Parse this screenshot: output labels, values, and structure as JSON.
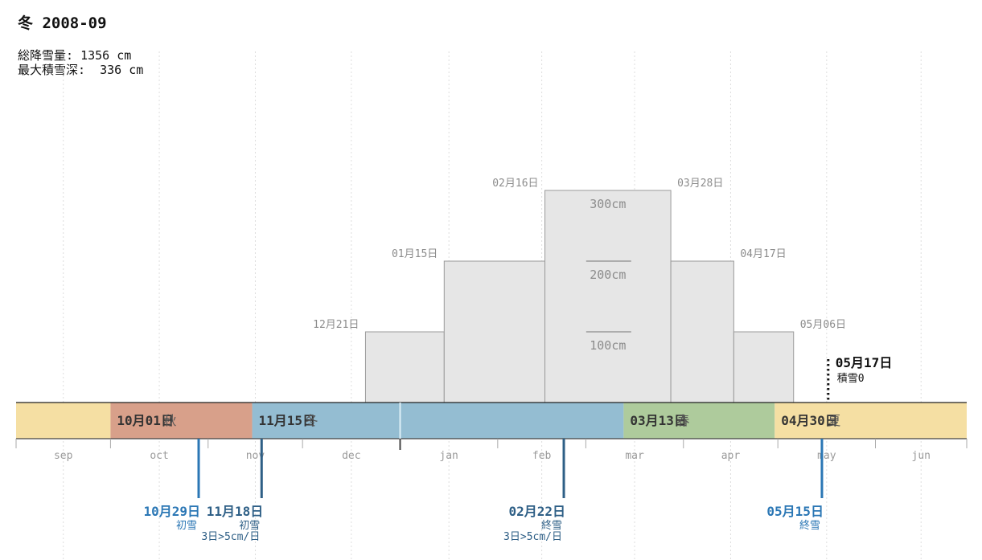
{
  "header": {
    "title": "冬 2008-09",
    "total_label": "総降雪量",
    "total_sep": ":",
    "total_value": "1356 cm",
    "max_label": "最大積雪深:",
    "max_value": "336 cm"
  },
  "chart_data": {
    "type": "step",
    "title": "冬 2008-09",
    "x_axis": {
      "type": "date",
      "range": [
        "2008-09-01",
        "2009-06-30"
      ],
      "tick_labels": [
        {
          "label": "sep",
          "date": "2008-09-01"
        },
        {
          "label": "oct",
          "date": "2008-10-01"
        },
        {
          "label": "nov",
          "date": "2008-11-01"
        },
        {
          "label": "dec",
          "date": "2008-12-01"
        },
        {
          "label": "jan",
          "date": "2009-01-01"
        },
        {
          "label": "feb",
          "date": "2009-02-01"
        },
        {
          "label": "mar",
          "date": "2009-03-01"
        },
        {
          "label": "apr",
          "date": "2009-04-01"
        },
        {
          "label": "may",
          "date": "2009-05-01"
        },
        {
          "label": "jun",
          "date": "2009-06-01"
        }
      ]
    },
    "y_axis": {
      "unit": "cm",
      "range": [
        0,
        300
      ],
      "reference_lines": [
        {
          "value": 100,
          "label": "100cm"
        },
        {
          "value": 200,
          "label": "200cm"
        },
        {
          "value": 300,
          "label": "300cm"
        }
      ]
    },
    "snow_depth_steps": [
      {
        "start": "2008-12-21",
        "end": "2009-01-15",
        "depth": 100,
        "label": "12月21日"
      },
      {
        "start": "2009-01-15",
        "end": "2009-02-16",
        "depth": 200,
        "label": "01月15日"
      },
      {
        "start": "2009-02-16",
        "end": "2009-03-28",
        "depth": 300,
        "label": "02月16日"
      },
      {
        "start": "2009-03-28",
        "end": "2009-04-17",
        "depth": 200,
        "label": "03月28日"
      },
      {
        "start": "2009-04-17",
        "end": "2009-05-06",
        "depth": 100,
        "label": "04月17日"
      },
      {
        "start": "2009-05-06",
        "end": null,
        "depth": null,
        "label": "05月06日"
      }
    ],
    "zero_snow_marker": {
      "date": "2009-05-17",
      "label": "05月17日",
      "sublabel": "積雪0"
    },
    "seasons": [
      {
        "name": "",
        "start": "2008-09-01",
        "end": "2008-10-01",
        "color": "#f5dfa3",
        "label": ""
      },
      {
        "name": "秋",
        "start": "2008-10-01",
        "end": "2008-11-15",
        "color": "#d8a08a",
        "label": "10月01日"
      },
      {
        "name": "冬",
        "start": "2008-11-15",
        "end": "2009-03-13",
        "color": "#94bdd2",
        "label": "11月15日"
      },
      {
        "name": "春",
        "start": "2009-03-13",
        "end": "2009-04-30",
        "color": "#aecb9c",
        "label": "03月13日"
      },
      {
        "name": "夏",
        "start": "2009-04-30",
        "end": "2009-06-30",
        "color": "#f5dfa3",
        "label": "04月30日"
      }
    ],
    "snow_events": [
      {
        "date": "2008-10-29",
        "label": "10月29日",
        "type": "初雪",
        "note": "",
        "color": "#2b77b5"
      },
      {
        "date": "2008-11-18",
        "label": "11月18日",
        "type": "初雪",
        "note": "3日>5cm/日",
        "color": "#2e5f86"
      },
      {
        "date": "2009-02-22",
        "label": "02月22日",
        "type": "終雪",
        "note": "3日>5cm/日",
        "color": "#2e5f86"
      },
      {
        "date": "2009-05-15",
        "label": "05月15日",
        "type": "終雪",
        "note": "",
        "color": "#2b77b5"
      }
    ],
    "year_boundary": "2009-01-01",
    "colors": {
      "bar_fill": "#e6e6e6",
      "bar_stroke": "#9a9a9a",
      "bar_label": "#8c8c8c",
      "tick_label": "#9a9a9a",
      "grid": "#dddddd",
      "baseline": "#222222"
    }
  }
}
